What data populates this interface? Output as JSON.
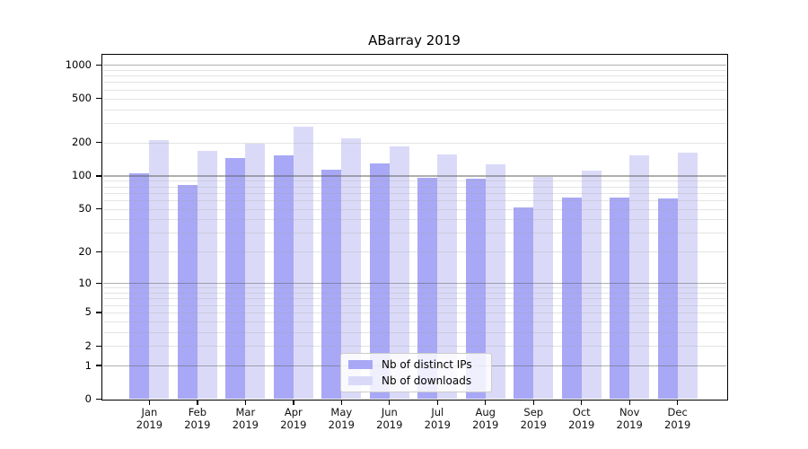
{
  "chart_data": {
    "type": "bar",
    "title": "ABarray 2019",
    "y_scale": "log-like: position proportional to log10(value+1)",
    "categories": [
      "Jan 2019",
      "Feb 2019",
      "Mar 2019",
      "Apr 2019",
      "May 2019",
      "Jun 2019",
      "Jul 2019",
      "Aug 2019",
      "Sep 2019",
      "Oct 2019",
      "Nov 2019",
      "Dec 2019"
    ],
    "series": [
      {
        "name": "Nb of distinct IPs",
        "color": "#a8a8f6",
        "values": [
          105,
          82,
          146,
          152,
          114,
          129,
          96,
          94,
          52,
          63,
          64,
          62
        ]
      },
      {
        "name": "Nb of downloads",
        "color": "#dadaf8",
        "values": [
          210,
          167,
          194,
          279,
          219,
          186,
          156,
          128,
          97,
          112,
          152,
          162
        ]
      }
    ],
    "y_ticks": [
      1000,
      500,
      200,
      100,
      50,
      20,
      10,
      5,
      2,
      1,
      0
    ],
    "ylim": [
      0,
      1000
    ],
    "grid": true,
    "major_gridline_values": [
      1,
      10,
      100,
      1000
    ],
    "minor_gridline_values": [
      2,
      3,
      4,
      5,
      6,
      7,
      8,
      9,
      20,
      30,
      40,
      50,
      60,
      70,
      80,
      90,
      200,
      300,
      400,
      500,
      600,
      700,
      800,
      900
    ],
    "legend_position": "inside lower center",
    "colors": {
      "background": "#ffffff",
      "axis": "#000000",
      "major_grid": "#afafaf",
      "minor_grid": "#e6e6e6"
    }
  }
}
